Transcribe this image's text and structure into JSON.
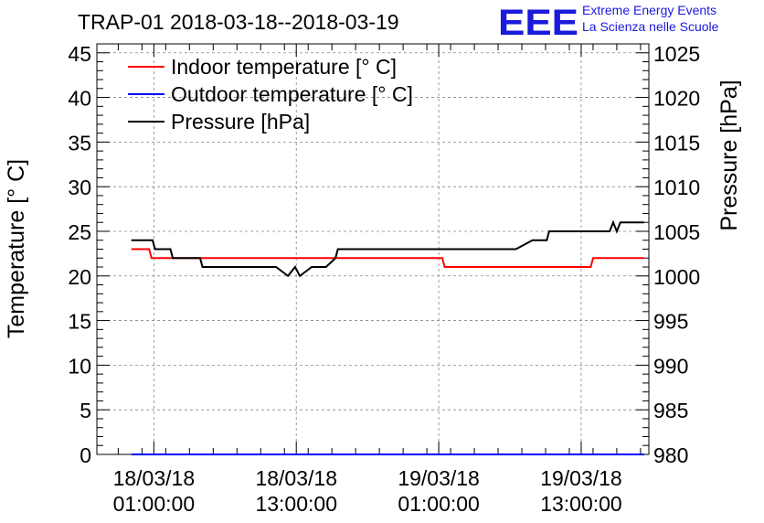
{
  "chart_data": {
    "type": "line",
    "title": "TRAP-01 2018-03-18--2018-03-19",
    "ylabel": "Temperature [° C]",
    "y2label": "Pressure [hPa]",
    "ylim": [
      0,
      46
    ],
    "y2lim": [
      980,
      1026
    ],
    "yticks": [
      0,
      5,
      10,
      15,
      20,
      25,
      30,
      35,
      40,
      45
    ],
    "y2ticks": [
      980,
      985,
      990,
      995,
      1000,
      1005,
      1010,
      1015,
      1020,
      1025
    ],
    "xlim_hours": [
      -3.8,
      42.7
    ],
    "xticks": [
      {
        "hour": 1,
        "date": "18/03/18",
        "time": "01:00:00"
      },
      {
        "hour": 13,
        "date": "18/03/18",
        "time": "13:00:00"
      },
      {
        "hour": 25,
        "date": "19/03/18",
        "time": "01:00:00"
      },
      {
        "hour": 37,
        "date": "19/03/18",
        "time": "13:00:00"
      }
    ],
    "legend": [
      {
        "label": "Indoor temperature [° C]",
        "color": "#ff0000"
      },
      {
        "label": "Outdoor temperature [° C]",
        "color": "#0000ff"
      },
      {
        "label": "Pressure [hPa]",
        "color": "#000000"
      }
    ],
    "series": [
      {
        "name": "Indoor temperature [° C]",
        "axis": "left",
        "color": "#ff0000",
        "x": [
          -0.9,
          0.6,
          0.8,
          12.6,
          12.8,
          25.3,
          25.5,
          33.3,
          33.5,
          37.8,
          38.0,
          41.1,
          41.3,
          42.3
        ],
        "y": [
          23,
          23,
          22,
          22,
          22,
          22,
          21,
          21,
          21,
          21,
          22,
          22,
          22,
          22
        ]
      },
      {
        "name": "Outdoor temperature [° C]",
        "axis": "left",
        "color": "#0000ff",
        "x": [
          -0.9,
          42.3
        ],
        "y": [
          0,
          0
        ]
      },
      {
        "name": "Pressure [hPa]",
        "axis": "right",
        "color": "#000000",
        "x": [
          -0.9,
          0.9,
          1.1,
          2.4,
          2.6,
          4.9,
          5.1,
          11.1,
          11.3,
          12.3,
          12.9,
          13.3,
          14.3,
          14.5,
          15.3,
          15.5,
          16.3,
          16.5,
          22.0,
          27.5,
          31.3,
          31.5,
          32.9,
          33.1,
          34.1,
          34.3,
          39.4,
          39.7,
          40.0,
          40.3,
          40.7,
          41.2,
          42.3
        ],
        "y": [
          1004,
          1004,
          1003,
          1003,
          1002,
          1002,
          1001,
          1001,
          1001,
          1000,
          1001,
          1000,
          1001,
          1001,
          1001,
          1001,
          1002,
          1003,
          1003,
          1003,
          1003,
          1003,
          1004,
          1004,
          1004,
          1005,
          1005,
          1006,
          1005,
          1006,
          1006,
          1006,
          1006
        ]
      }
    ]
  },
  "logo": {
    "letters": "EEE",
    "line1": "Extreme Energy Events",
    "line2": "La Scienza nelle Scuole"
  }
}
